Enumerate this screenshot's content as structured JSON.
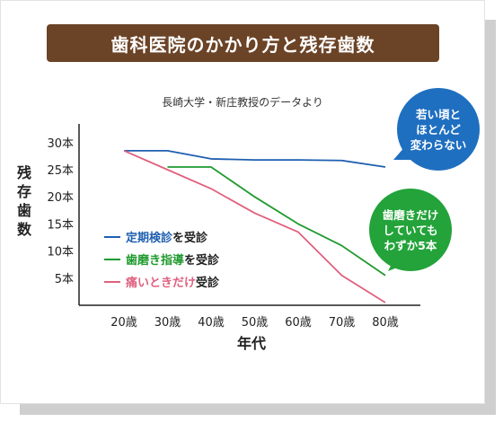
{
  "header": {
    "title": "歯科医院のかかり方と残存歯数"
  },
  "chart_data": {
    "type": "line",
    "subtitle": "長崎大学・新庄教授のデータより",
    "ylabel": "残存歯数",
    "xlabel": "年代",
    "categories": [
      "20歳",
      "30歳",
      "40歳",
      "50歳",
      "60歳",
      "70歳",
      "80歳"
    ],
    "y_ticks": [
      {
        "value": 30,
        "label": "30本"
      },
      {
        "value": 25,
        "label": "25本"
      },
      {
        "value": 20,
        "label": "20本"
      },
      {
        "value": 15,
        "label": "15本"
      },
      {
        "value": 10,
        "label": "10本"
      },
      {
        "value": 5,
        "label": "5本"
      }
    ],
    "ylim": [
      0,
      31
    ],
    "grid": false,
    "legend_position": "bottom-left",
    "series": [
      {
        "name": "定期検診",
        "name_suffix": "を受診",
        "color": "#1f5fb0",
        "values": [
          28.5,
          28.5,
          27,
          26.8,
          26.8,
          26.7,
          25.5
        ]
      },
      {
        "name": "歯磨き指導",
        "name_suffix": "を受診",
        "color": "#1f9a2e",
        "values": [
          null,
          25.5,
          25.5,
          20,
          15,
          11,
          5.5
        ]
      },
      {
        "name": "痛いときだけ",
        "name_suffix": "受診",
        "color": "#e0607e",
        "values": [
          28.5,
          25,
          21.5,
          17,
          13.5,
          5.5,
          0.5
        ]
      }
    ],
    "annotations": [
      {
        "lines": [
          "若い頃と",
          "ほとんど",
          "変わらない"
        ],
        "color": "#1f6fc0"
      },
      {
        "lines": [
          "歯磨きだけ",
          "していても",
          "わずか5本"
        ],
        "color": "#23a33a"
      }
    ]
  }
}
